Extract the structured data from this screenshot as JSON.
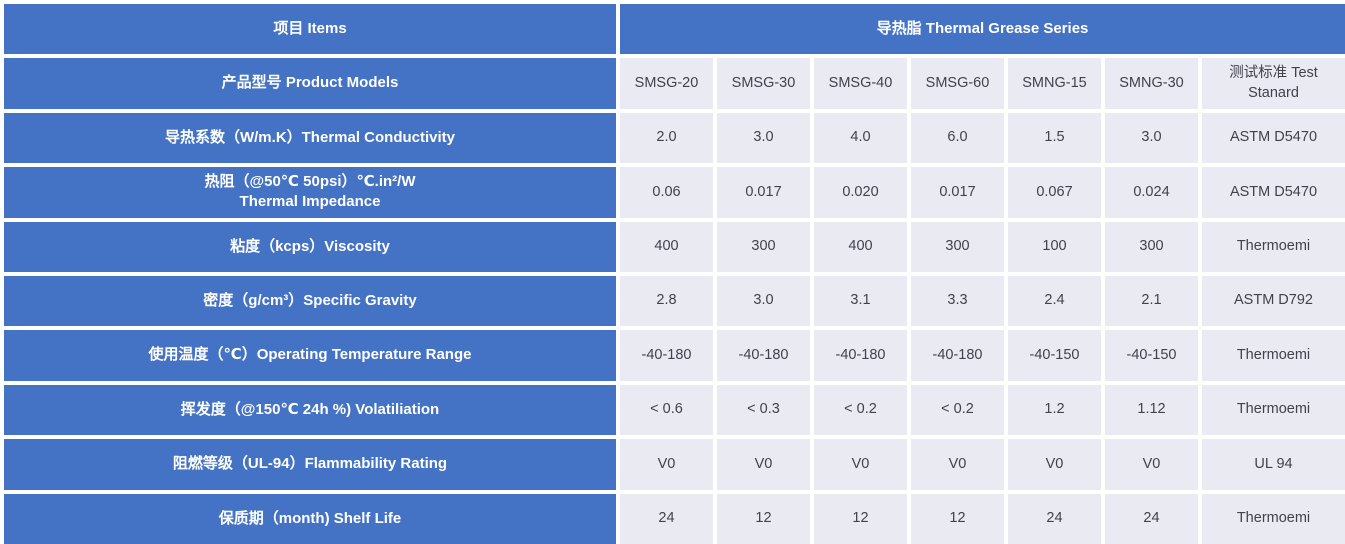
{
  "colors": {
    "header_blue": "#4472C4",
    "cell_bg": "#E9EAF2",
    "cell_text": "#40424E",
    "grid_gap": "#FFFFFF"
  },
  "table": {
    "header": {
      "items_label": "项目  Items",
      "series_label": "导热脂 Thermal Grease Series"
    },
    "models_row": {
      "label": "产品型号 Product Models",
      "models": [
        "SMSG-20",
        "SMSG-30",
        "SMSG-40",
        "SMSG-60",
        "SMNG-15",
        "SMNG-30"
      ],
      "standard_label": "测试标准 Test Stanard"
    },
    "rows": [
      {
        "label": "导热系数（W/m.K）Thermal Conductivity",
        "label_line2": "",
        "values": [
          "2.0",
          "3.0",
          "4.0",
          "6.0",
          "1.5",
          "3.0"
        ],
        "standard": "ASTM D5470"
      },
      {
        "label": "热阻（@50℃  50psi）℃.in²/W",
        "label_line2": "Thermal Impedance",
        "values": [
          "0.06",
          "0.017",
          "0.020",
          "0.017",
          "0.067",
          "0.024"
        ],
        "standard": "ASTM D5470"
      },
      {
        "label": "粘度（kcps）Viscosity",
        "label_line2": "",
        "values": [
          "400",
          "300",
          "400",
          "300",
          "100",
          "300"
        ],
        "standard": "Thermoemi"
      },
      {
        "label": "密度（g/cm³）Specific Gravity",
        "label_line2": "",
        "values": [
          "2.8",
          "3.0",
          "3.1",
          "3.3",
          "2.4",
          "2.1"
        ],
        "standard": "ASTM D792"
      },
      {
        "label": "使用温度（℃）Operating Temperature Range",
        "label_line2": "",
        "values": [
          "-40-180",
          "-40-180",
          "-40-180",
          "-40-180",
          "-40-150",
          "-40-150"
        ],
        "standard": "Thermoemi"
      },
      {
        "label": "挥发度（@150℃ 24h %) Volatiliation",
        "label_line2": "",
        "values": [
          "< 0.6",
          "< 0.3",
          "< 0.2",
          "< 0.2",
          "1.2",
          "1.12"
        ],
        "standard": "Thermoemi"
      },
      {
        "label": "阻燃等级（UL-94）Flammability Rating",
        "label_line2": "",
        "values": [
          "V0",
          "V0",
          "V0",
          "V0",
          "V0",
          "V0"
        ],
        "standard": "UL 94"
      },
      {
        "label": "保质期（month) Shelf Life",
        "label_line2": "",
        "values": [
          "24",
          "12",
          "12",
          "12",
          "24",
          "24"
        ],
        "standard": "Thermoemi"
      }
    ]
  }
}
